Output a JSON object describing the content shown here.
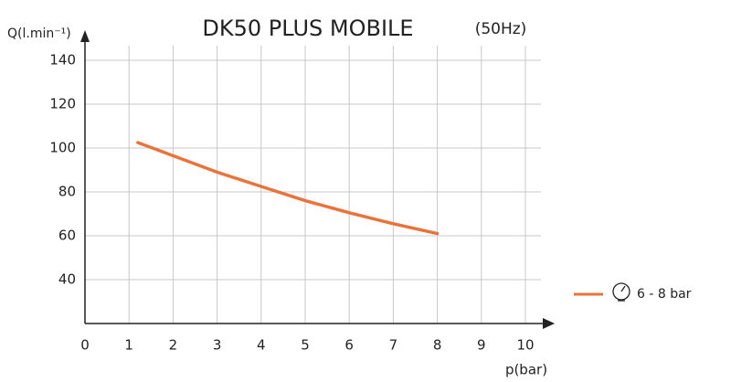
{
  "chart_data": {
    "type": "line",
    "title": "DK50 PLUS MOBILE",
    "subtitle": "(50Hz)",
    "y_label": "Q(l.min⁻¹)",
    "x_label": "p(bar)",
    "x": [
      1.2,
      2,
      3,
      4,
      5,
      6,
      7,
      8
    ],
    "series": [
      {
        "name": "6 - 8 bar",
        "color": "#e8743b",
        "values": [
          102.5,
          96.5,
          89,
          82.5,
          76,
          70.5,
          65.5,
          61
        ]
      }
    ],
    "xlim": [
      0,
      10
    ],
    "xticks": [
      0,
      1,
      2,
      3,
      4,
      5,
      6,
      7,
      8,
      9,
      10
    ],
    "ylim": [
      20,
      140
    ],
    "yticks": [
      40,
      60,
      80,
      100,
      120,
      140
    ],
    "grid": true,
    "legend": "right"
  }
}
